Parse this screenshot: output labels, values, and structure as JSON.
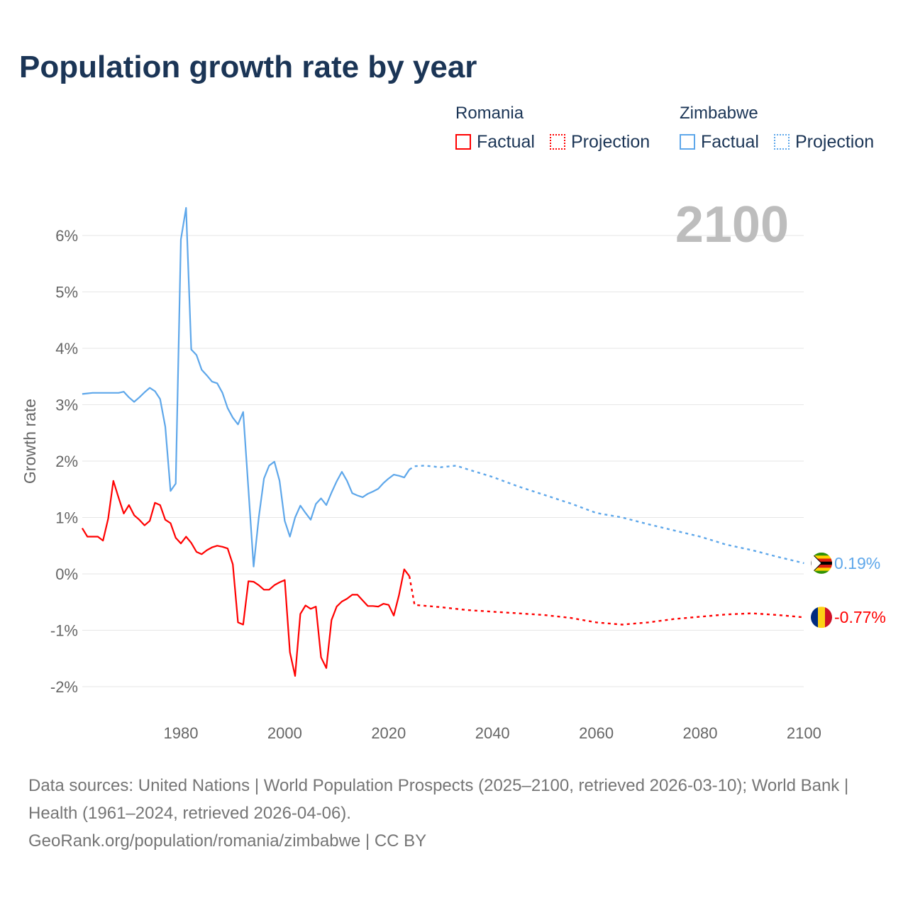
{
  "title": "Population growth rate by year",
  "current_year": "2100",
  "legend": {
    "groups": [
      {
        "name": "Romania",
        "color": "#ff0000",
        "factual": "Factual",
        "projection": "Projection"
      },
      {
        "name": "Zimbabwe",
        "color": "#5ea7ea",
        "factual": "Factual",
        "projection": "Projection"
      }
    ]
  },
  "footer": {
    "line1": "Data sources: United Nations | World Population Prospects (2025–2100, retrieved 2026-03-10); World Bank | Health (1961–2024, retrieved 2026-04-06).",
    "line2": "GeoRank.org/population/romania/zimbabwe | CC BY"
  },
  "chart_data": {
    "type": "line",
    "title": "Population growth rate by year",
    "xlabel": "",
    "ylabel": "Growth rate",
    "xlim": [
      1961,
      2100
    ],
    "ylim": [
      -2,
      6
    ],
    "grid": true,
    "xticks": [
      1980,
      2000,
      2020,
      2040,
      2060,
      2080,
      2100
    ],
    "yticks": [
      -2,
      -1,
      0,
      1,
      2,
      3,
      4,
      5,
      6
    ],
    "ytick_labels": [
      "-2%",
      "-1%",
      "0%",
      "1%",
      "2%",
      "3%",
      "4%",
      "5%",
      "6%"
    ],
    "end_labels": {
      "Romania": "-0.77%",
      "Zimbabwe": "0.19%"
    },
    "series": [
      {
        "name": "Zimbabwe",
        "color": "#5ea7ea",
        "factual": {
          "x": [
            1961,
            1962,
            1963,
            1964,
            1965,
            1966,
            1967,
            1968,
            1969,
            1970,
            1971,
            1972,
            1973,
            1974,
            1975,
            1976,
            1977,
            1978,
            1979,
            1980,
            1981,
            1982,
            1983,
            1984,
            1985,
            1986,
            1987,
            1988,
            1989,
            1990,
            1991,
            1992,
            1993,
            1994,
            1995,
            1996,
            1997,
            1998,
            1999,
            2000,
            2001,
            2002,
            2003,
            2004,
            2005,
            2006,
            2007,
            2008,
            2009,
            2010,
            2011,
            2012,
            2013,
            2014,
            2015,
            2016,
            2017,
            2018,
            2019,
            2020,
            2021,
            2022,
            2023,
            2024
          ],
          "y": [
            3.19,
            3.2,
            3.21,
            3.21,
            3.21,
            3.21,
            3.21,
            3.21,
            3.23,
            3.13,
            3.05,
            3.13,
            3.22,
            3.3,
            3.24,
            3.1,
            2.61,
            1.47,
            1.6,
            5.93,
            6.49,
            3.98,
            3.88,
            3.62,
            3.52,
            3.41,
            3.38,
            3.21,
            2.94,
            2.77,
            2.65,
            2.87,
            1.5,
            0.13,
            1.0,
            1.69,
            1.92,
            1.99,
            1.65,
            0.94,
            0.66,
            1.0,
            1.21,
            1.08,
            0.96,
            1.24,
            1.34,
            1.22,
            1.44,
            1.64,
            1.81,
            1.65,
            1.43,
            1.39,
            1.36,
            1.42,
            1.46,
            1.51,
            1.61,
            1.69,
            1.76,
            1.74,
            1.71,
            1.85
          ]
        },
        "projection": {
          "x": [
            2024,
            2025,
            2027,
            2030,
            2033,
            2035,
            2040,
            2045,
            2050,
            2055,
            2060,
            2065,
            2070,
            2075,
            2080,
            2085,
            2090,
            2095,
            2100
          ],
          "y": [
            1.85,
            1.91,
            1.92,
            1.89,
            1.92,
            1.86,
            1.72,
            1.55,
            1.4,
            1.25,
            1.08,
            1.0,
            0.88,
            0.77,
            0.66,
            0.52,
            0.42,
            0.3,
            0.19
          ]
        }
      },
      {
        "name": "Romania",
        "color": "#ff0000",
        "factual": {
          "x": [
            1961,
            1962,
            1963,
            1964,
            1965,
            1966,
            1967,
            1968,
            1969,
            1970,
            1971,
            1972,
            1973,
            1974,
            1975,
            1976,
            1977,
            1978,
            1979,
            1980,
            1981,
            1982,
            1983,
            1984,
            1985,
            1986,
            1987,
            1988,
            1989,
            1990,
            1991,
            1992,
            1993,
            1994,
            1995,
            1996,
            1997,
            1998,
            1999,
            2000,
            2001,
            2002,
            2003,
            2004,
            2005,
            2006,
            2007,
            2008,
            2009,
            2010,
            2011,
            2012,
            2013,
            2014,
            2015,
            2016,
            2017,
            2018,
            2019,
            2020,
            2021,
            2022,
            2023,
            2024
          ],
          "y": [
            0.81,
            0.66,
            0.66,
            0.66,
            0.59,
            0.98,
            1.65,
            1.35,
            1.07,
            1.22,
            1.04,
            0.96,
            0.86,
            0.94,
            1.26,
            1.22,
            0.96,
            0.9,
            0.64,
            0.54,
            0.66,
            0.55,
            0.39,
            0.35,
            0.42,
            0.47,
            0.5,
            0.48,
            0.45,
            0.17,
            -0.86,
            -0.9,
            -0.13,
            -0.14,
            -0.2,
            -0.28,
            -0.28,
            -0.2,
            -0.15,
            -0.11,
            -1.39,
            -1.81,
            -0.71,
            -0.56,
            -0.62,
            -0.58,
            -1.48,
            -1.67,
            -0.82,
            -0.58,
            -0.49,
            -0.44,
            -0.37,
            -0.37,
            -0.47,
            -0.57,
            -0.57,
            -0.58,
            -0.53,
            -0.55,
            -0.74,
            -0.38,
            0.08,
            -0.04
          ]
        },
        "projection": {
          "x": [
            2024,
            2025,
            2030,
            2035,
            2040,
            2045,
            2050,
            2055,
            2060,
            2065,
            2070,
            2075,
            2080,
            2085,
            2090,
            2095,
            2100
          ],
          "y": [
            -0.04,
            -0.55,
            -0.59,
            -0.64,
            -0.67,
            -0.7,
            -0.73,
            -0.78,
            -0.86,
            -0.9,
            -0.86,
            -0.8,
            -0.76,
            -0.72,
            -0.7,
            -0.73,
            -0.77
          ]
        }
      }
    ]
  }
}
